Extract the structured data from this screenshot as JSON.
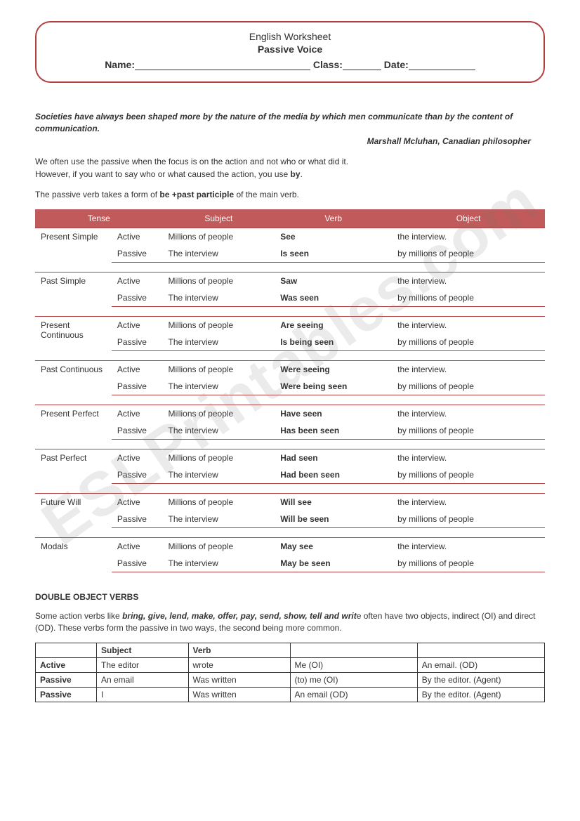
{
  "header": {
    "title1": "English Worksheet",
    "title2": "Passive Voice",
    "name_label": "Name:",
    "class_label": "Class:",
    "date_label": "Date:"
  },
  "quote": "Societies have always been shaped more by the nature of the media by which men communicate than by the content of communication.",
  "attribution": "Marshall Mcluhan, Canadian philosopher",
  "intro": {
    "p1": "We often use the passive when the focus is on the action and not who or what did it.",
    "p2_a": "However, if you want to say who or what caused the action, you use ",
    "p2_b": "by",
    "p2_c": ".",
    "p3_a": "The passive verb takes a form of ",
    "p3_b": "be +past participle",
    "p3_c": " of the main verb."
  },
  "columns": {
    "tense": "Tense",
    "subject": "Subject",
    "verb": "Verb",
    "object": "Object"
  },
  "voice": {
    "active": "Active",
    "passive": "Passive"
  },
  "subjects": {
    "active": "Millions of people",
    "passive": "The interview"
  },
  "objects": {
    "active": "the interview.",
    "passive": "by millions of people"
  },
  "tenses": [
    {
      "name": "Present Simple",
      "av": "See",
      "pv": "Is seen"
    },
    {
      "name": "Past Simple",
      "av": "Saw",
      "pv": "Was seen"
    },
    {
      "name": "Present Continuous",
      "av": "Are seeing",
      "pv": "Is being seen"
    },
    {
      "name": "Past Continuous",
      "av": "Were seeing",
      "pv": "Were being seen"
    },
    {
      "name": "Present Perfect",
      "av": "Have seen",
      "pv": "Has been seen"
    },
    {
      "name": "Past Perfect",
      "av": "Had seen",
      "pv": "Had been seen"
    },
    {
      "name": "Future Will",
      "av": "Will see",
      "pv": "Will be seen"
    },
    {
      "name": "Modals",
      "av": "May see",
      "pv": "May be seen"
    }
  ],
  "dov": {
    "heading": "DOUBLE OBJECT VERBS",
    "p_a": "Some action verbs like ",
    "p_b": "bring, give, lend, make, offer, pay, send, show, tell and writ",
    "p_c": "e often have two objects, indirect (OI) and direct (OD). These verbs form the passive in two ways, the second being more common.",
    "head": {
      "c1": "",
      "c2": "Subject",
      "c3": "Verb",
      "c4": "",
      "c5": ""
    },
    "rows": [
      {
        "h": "Active",
        "c2": "The editor",
        "c3": "wrote",
        "c4": "Me (OI)",
        "c5": "An email. (OD)"
      },
      {
        "h": "Passive",
        "c2": "An email",
        "c3": "Was written",
        "c4": "(to) me (OI)",
        "c5": "By the editor. (Agent)"
      },
      {
        "h": "Passive",
        "c2": "I",
        "c3": "Was written",
        "c4": "An email (OD)",
        "c5": "By the editor. (Agent)"
      }
    ]
  },
  "watermark": "ESLPrintables.com",
  "colors": {
    "border": "#b04040",
    "table_head_bg": "#c15a5a",
    "table_head_fg": "#ffffff"
  }
}
